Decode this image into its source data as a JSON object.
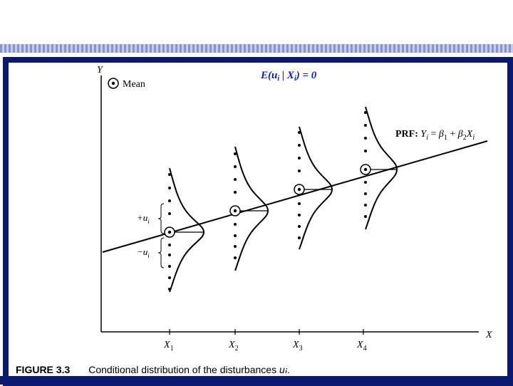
{
  "axes": {
    "y_label": "Y",
    "x_label": "X",
    "x_ticks": [
      "X",
      "X",
      "X",
      "X"
    ],
    "x_tick_subs": [
      "1",
      "2",
      "3",
      "4"
    ]
  },
  "legend": {
    "mean_label": "Mean"
  },
  "annotation": {
    "cond_prefix": "E(u",
    "cond_sub_i": "i",
    "cond_mid": " | X",
    "cond_sub_i2": "i",
    "cond_suffix": ") = 0"
  },
  "prf": {
    "label_prefix": "PRF: ",
    "y": "Y",
    "y_sub": "i",
    "eq": " = ",
    "beta": "β",
    "beta1_sub": "1",
    "plus": " + ",
    "beta2_sub": "2",
    "x": "X",
    "x_sub": "i"
  },
  "disturbance": {
    "plus_label": "+u",
    "plus_sub": "i",
    "minus_label": "−u",
    "minus_sub": "i"
  },
  "caption": {
    "label": "FIGURE 3.3",
    "text": "Conditional distribution of the disturbances ",
    "var": "u",
    "var_sub": "i",
    "end": "."
  },
  "colors": {
    "frame": "#0b1a6e",
    "annotation": "#0b1fb5",
    "ink": "#000000"
  }
}
